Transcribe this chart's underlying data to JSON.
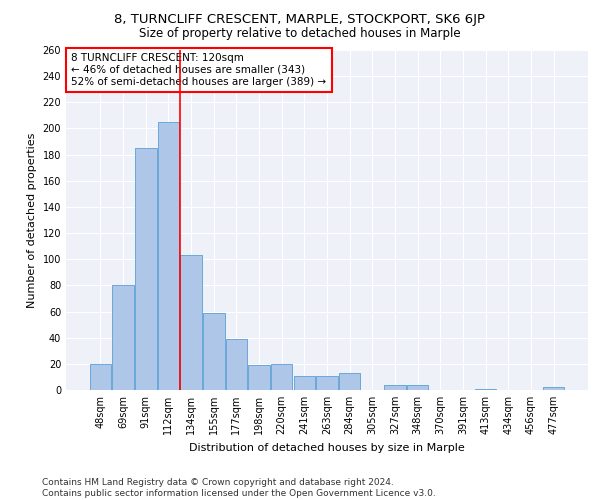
{
  "title1": "8, TURNCLIFF CRESCENT, MARPLE, STOCKPORT, SK6 6JP",
  "title2": "Size of property relative to detached houses in Marple",
  "xlabel": "Distribution of detached houses by size in Marple",
  "ylabel": "Number of detached properties",
  "categories": [
    "48sqm",
    "69sqm",
    "91sqm",
    "112sqm",
    "134sqm",
    "155sqm",
    "177sqm",
    "198sqm",
    "220sqm",
    "241sqm",
    "263sqm",
    "284sqm",
    "305sqm",
    "327sqm",
    "348sqm",
    "370sqm",
    "391sqm",
    "413sqm",
    "434sqm",
    "456sqm",
    "477sqm"
  ],
  "values": [
    20,
    80,
    185,
    205,
    103,
    59,
    39,
    19,
    20,
    11,
    11,
    13,
    0,
    4,
    4,
    0,
    0,
    1,
    0,
    0,
    2
  ],
  "bar_color": "#aec6e8",
  "bar_edge_color": "#5a9fd4",
  "ref_line_x": 3.5,
  "ref_line_color": "red",
  "annotation_text": "8 TURNCLIFF CRESCENT: 120sqm\n← 46% of detached houses are smaller (343)\n52% of semi-detached houses are larger (389) →",
  "annotation_box_color": "white",
  "annotation_box_edge_color": "red",
  "ylim": [
    0,
    260
  ],
  "yticks": [
    0,
    20,
    40,
    60,
    80,
    100,
    120,
    140,
    160,
    180,
    200,
    220,
    240,
    260
  ],
  "background_color": "#eef2f8",
  "footer_text": "Contains HM Land Registry data © Crown copyright and database right 2024.\nContains public sector information licensed under the Open Government Licence v3.0.",
  "title1_fontsize": 9.5,
  "title2_fontsize": 8.5,
  "xlabel_fontsize": 8,
  "ylabel_fontsize": 8,
  "tick_fontsize": 7,
  "annotation_fontsize": 7.5,
  "footer_fontsize": 6.5
}
